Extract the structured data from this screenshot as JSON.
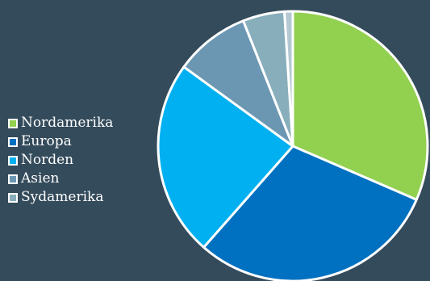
{
  "chart_data": {
    "type": "pie",
    "title": "",
    "legend_position": "left",
    "slices": [
      {
        "label": "Nordamerika",
        "value": 31.5,
        "color": "#92d050"
      },
      {
        "label": "Europa",
        "value": 30.0,
        "color": "#0070c0"
      },
      {
        "label": "Norden",
        "value": 23.5,
        "color": "#00b0f0"
      },
      {
        "label": "Asien",
        "value": 9.0,
        "color": "#6b97b3"
      },
      {
        "label": "Sydamerika",
        "value": 5.0,
        "color": "#88aebb"
      },
      {
        "label": "",
        "value": 1.0,
        "color": "#b4c8d2"
      }
    ],
    "legend": [
      {
        "label": "Nordamerika",
        "color": "#92d050"
      },
      {
        "label": "Europa",
        "color": "#0070c0"
      },
      {
        "label": "Norden",
        "color": "#00b0f0"
      },
      {
        "label": "Asien",
        "color": "#6b97b3"
      },
      {
        "label": "Sydamerika",
        "color": "#88aebb"
      }
    ]
  },
  "colors": {
    "background": "#344b5b",
    "slice_border": "#ffffff",
    "legend_text": "#ffffff"
  }
}
